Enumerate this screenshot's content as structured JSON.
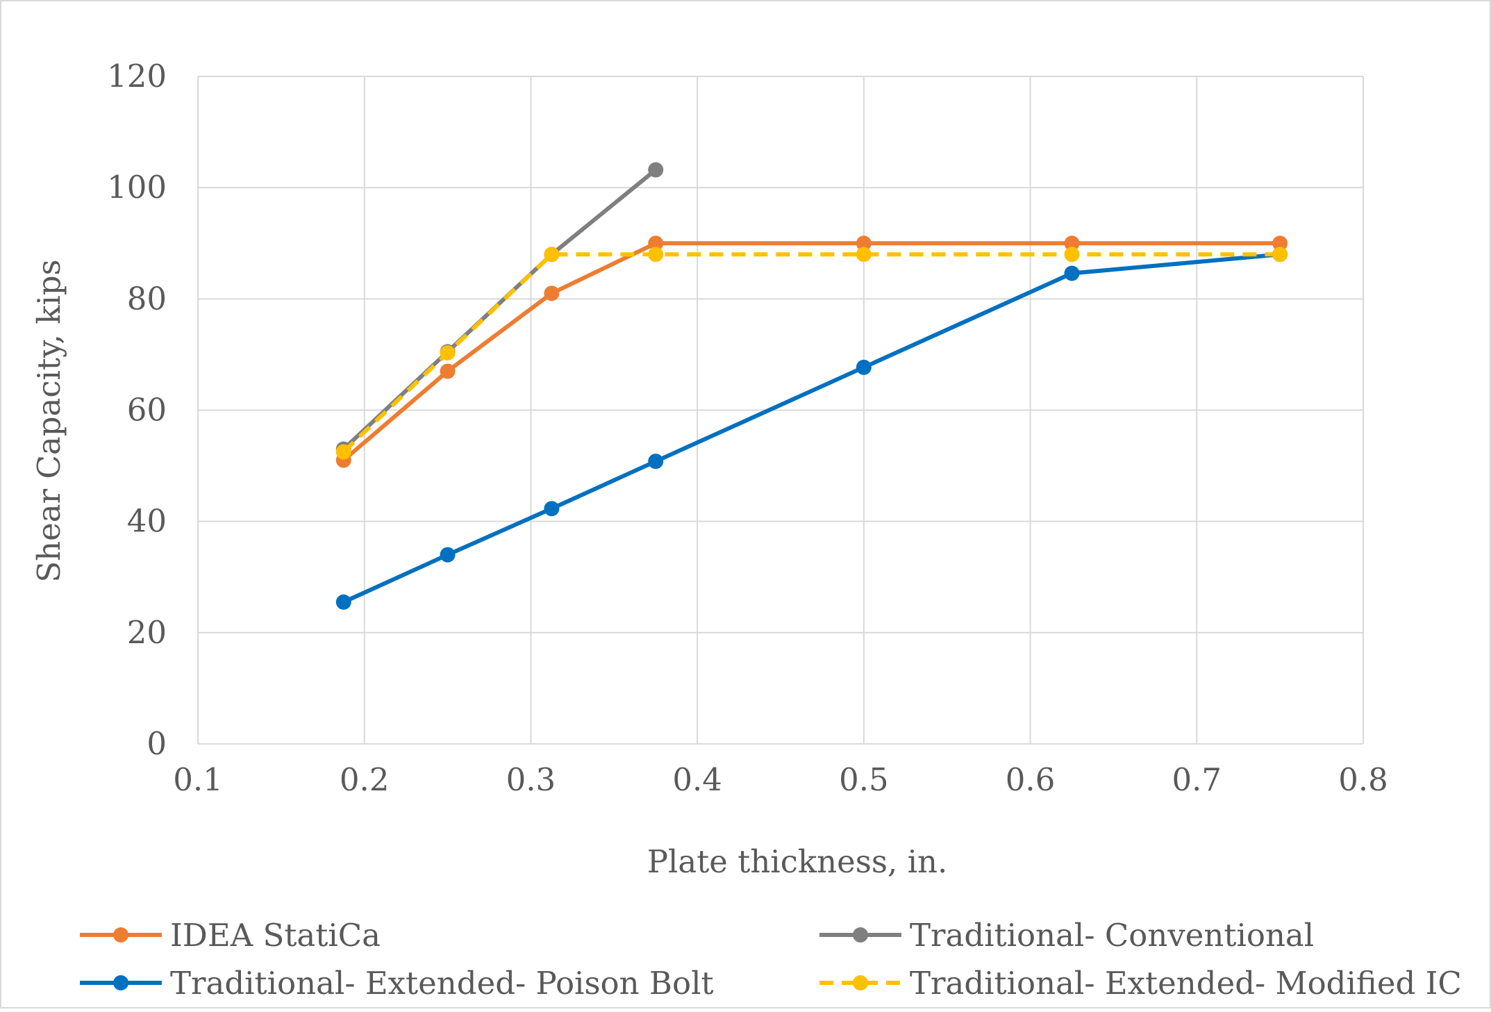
{
  "colors": {
    "background": "#ffffff",
    "frame": "#d9d9d9",
    "grid": "#d9d9d9",
    "text": "#595959"
  },
  "chart_data": {
    "type": "line",
    "title": "",
    "xlabel": "Plate thickness, in.",
    "ylabel": "Shear Capacity, kips",
    "xlim": [
      0.1,
      0.8
    ],
    "ylim": [
      0,
      120
    ],
    "x_ticks": [
      "0.1",
      "0.2",
      "0.3",
      "0.4",
      "0.5",
      "0.6",
      "0.7",
      "0.8"
    ],
    "y_ticks": [
      "0",
      "20",
      "40",
      "60",
      "80",
      "100",
      "120"
    ],
    "grid": true,
    "legend_position": "bottom",
    "series": [
      {
        "name": "IDEA StatiCa",
        "color": "#ED7D31",
        "dashed": false,
        "x": [
          0.1875,
          0.25,
          0.3125,
          0.375,
          0.5,
          0.625,
          0.75
        ],
        "y": [
          51,
          67,
          81,
          90,
          90,
          90,
          90
        ]
      },
      {
        "name": "Traditional- Conventional",
        "color": "#7F7F7F",
        "dashed": false,
        "x": [
          0.1875,
          0.25,
          0.3125,
          0.375
        ],
        "y": [
          53,
          70.5,
          88,
          103.2
        ]
      },
      {
        "name": "Traditional- Extended- Poison Bolt",
        "color": "#0070C0",
        "dashed": false,
        "x": [
          0.1875,
          0.25,
          0.3125,
          0.375,
          0.5,
          0.625,
          0.75
        ],
        "y": [
          25.5,
          34,
          42.3,
          50.8,
          67.7,
          84.6,
          88
        ]
      },
      {
        "name": "Traditional- Extended- Modified IC",
        "color": "#FFC000",
        "dashed": true,
        "x": [
          0.1875,
          0.25,
          0.3125,
          0.375,
          0.5,
          0.625,
          0.75
        ],
        "y": [
          52.5,
          70.3,
          88,
          88,
          88,
          88,
          88
        ]
      }
    ]
  }
}
